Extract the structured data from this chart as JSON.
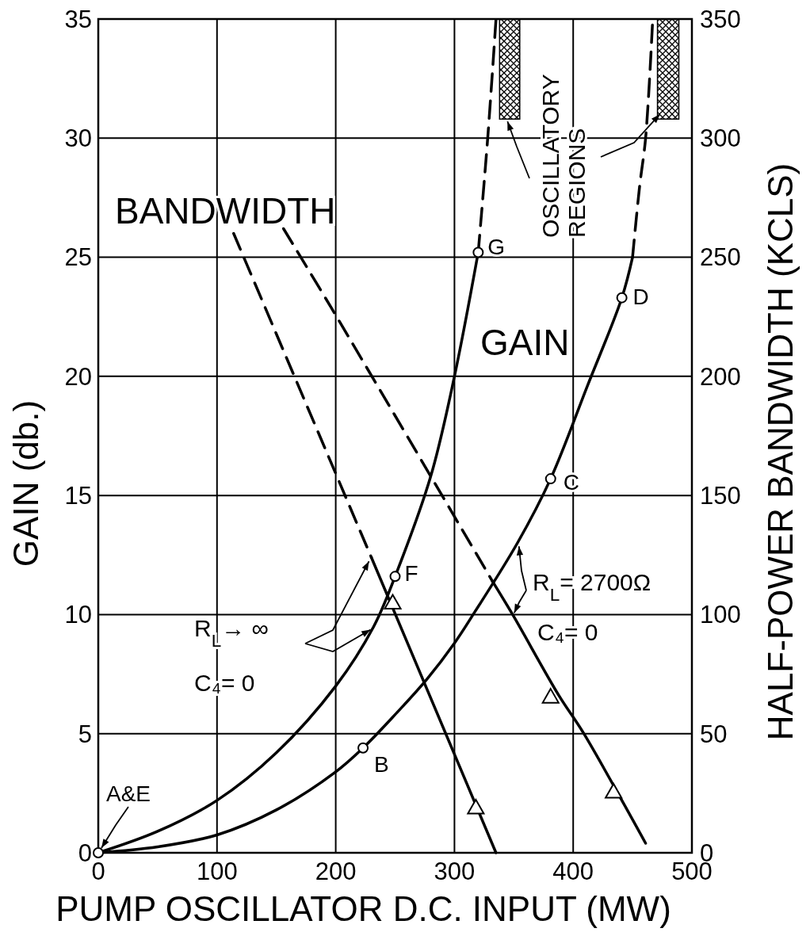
{
  "chart_data": {
    "type": "line",
    "xlabel": "PUMP OSCILLATOR D.C. INPUT (MW)",
    "ylabel": "GAIN (db.)",
    "y2label": "HALF-POWER BANDWIDTH (KCLS)",
    "xlim": [
      0,
      500
    ],
    "xticks": [
      0,
      100,
      200,
      300,
      400,
      500
    ],
    "ylim": [
      0,
      35
    ],
    "yticks": [
      0,
      5,
      10,
      15,
      20,
      25,
      30,
      35
    ],
    "y2lim": [
      0,
      350
    ],
    "y2ticks": [
      0,
      50,
      100,
      150,
      200,
      250,
      300,
      350
    ],
    "grid": true,
    "series": [
      {
        "type": "line",
        "color": "#000000",
        "line_style": "solid",
        "x": [
          0,
          50,
          100,
          150,
          200,
          232,
          250,
          280,
          300,
          320
        ],
        "values": [
          0,
          0.9,
          2.2,
          4.2,
          7.0,
          9.5,
          11.6,
          15.8,
          20,
          25.2
        ]
      },
      {
        "type": "line",
        "color": "#000000",
        "line_style": "dashed",
        "x": [
          320,
          328,
          335
        ],
        "values": [
          25.2,
          30,
          35
        ]
      },
      {
        "type": "line",
        "color": "#000000",
        "line_style": "solid",
        "x": [
          0,
          50,
          100,
          150,
          200,
          223,
          250,
          277,
          300,
          317,
          353,
          381,
          412,
          441,
          450
        ],
        "values": [
          0,
          0.25,
          0.75,
          1.8,
          3.4,
          4.4,
          5.8,
          7.3,
          8.8,
          10.1,
          13,
          15.7,
          19.6,
          23.3,
          25
        ]
      },
      {
        "type": "line",
        "color": "#000000",
        "line_style": "dashed",
        "x": [
          450,
          456,
          461,
          467
        ],
        "values": [
          25,
          28,
          30,
          35
        ]
      },
      {
        "type": "line",
        "axis": "y2",
        "color": "#000000",
        "line_style": "dashed",
        "x": [
          114,
          172,
          230
        ],
        "values": [
          260,
          192,
          124
        ]
      },
      {
        "type": "line",
        "axis": "y2",
        "color": "#000000",
        "line_style": "solid",
        "x": [
          230,
          335
        ],
        "values": [
          124,
          0
        ]
      },
      {
        "type": "line",
        "axis": "y2",
        "color": "#000000",
        "line_style": "dashed",
        "x": [
          156,
          196,
          332
        ],
        "values": [
          262,
          229,
          114
        ]
      },
      {
        "type": "line",
        "axis": "y2",
        "color": "#000000",
        "line_style": "solid",
        "x": [
          332,
          349,
          388,
          409,
          461
        ],
        "values": [
          114,
          100,
          66,
          50,
          4
        ]
      },
      {
        "type": "scatter",
        "marker": "circle",
        "color": "#000000",
        "x": [
          0,
          223,
          381,
          441,
          250,
          320
        ],
        "values": [
          0,
          4.4,
          15.7,
          23.3,
          11.6,
          25.2
        ]
      },
      {
        "type": "scatter",
        "marker": "triangle",
        "axis": "y2",
        "color": "#000000",
        "x": [
          248,
          318,
          381,
          434
        ],
        "values": [
          105,
          19,
          65.5,
          25.6
        ]
      }
    ],
    "bands": [
      {
        "axis": "x",
        "from": 338,
        "to": 355
      },
      {
        "axis": "x",
        "from": 471,
        "to": 489
      }
    ],
    "annotations": [
      "BANDWIDTH",
      "GAIN",
      {
        "text": "OSCILLATORY REGIONS",
        "x": 473,
        "y": 31
      },
      "R$_{L}$→ ∞",
      "C₄= 0",
      "R$_{L}$= 2700Ω",
      "C₄= 0",
      {
        "text": "A&E",
        "x": 0,
        "y": 0
      },
      {
        "text": "B",
        "x": 223,
        "y": 4.4
      },
      {
        "text": "C",
        "x": 381,
        "y": 15.7
      },
      {
        "text": "D",
        "x": 441,
        "y": 23.3
      },
      {
        "text": "F",
        "x": 250,
        "y": 11.6
      },
      {
        "text": "G",
        "x": 320,
        "y": 25.2
      }
    ]
  }
}
